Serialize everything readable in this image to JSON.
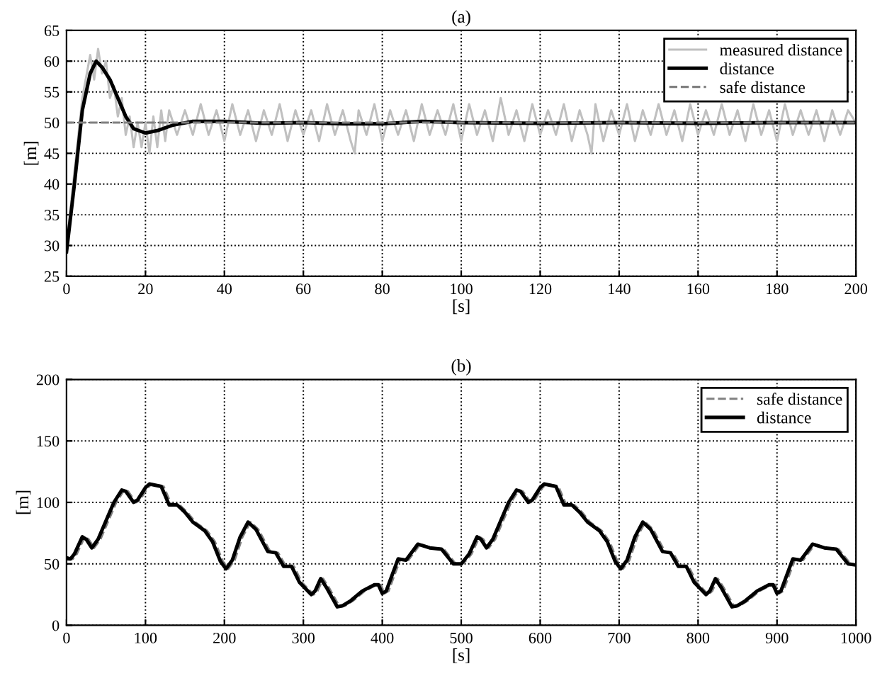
{
  "chart_data": [
    {
      "type": "line",
      "title": "(a)",
      "xlabel": "[s]",
      "ylabel": "[m]",
      "xlim": [
        0,
        200
      ],
      "ylim": [
        25,
        65
      ],
      "xticks": [
        0,
        20,
        40,
        60,
        80,
        100,
        120,
        140,
        160,
        180,
        200
      ],
      "yticks": [
        25,
        30,
        35,
        40,
        45,
        50,
        55,
        60,
        65
      ],
      "grid": true,
      "legend": "top right",
      "series": [
        {
          "name": "measured distance",
          "color": "#c0c0c0",
          "line_style": "solid",
          "x": [
            0,
            2,
            4,
            6,
            7,
            8,
            9,
            10,
            11,
            12,
            13,
            14,
            15,
            16,
            17,
            18,
            19,
            20,
            21,
            22,
            23,
            24,
            25,
            26,
            28,
            30,
            32,
            34,
            36,
            38,
            40,
            42,
            44,
            46,
            48,
            50,
            52,
            54,
            56,
            58,
            60,
            62,
            64,
            66,
            68,
            70,
            72,
            73,
            74,
            76,
            78,
            80,
            82,
            84,
            86,
            88,
            90,
            92,
            94,
            96,
            98,
            100,
            102,
            104,
            106,
            108,
            110,
            112,
            114,
            116,
            118,
            120,
            122,
            124,
            126,
            128,
            130,
            132,
            133,
            134,
            136,
            138,
            140,
            142,
            144,
            146,
            148,
            150,
            152,
            154,
            156,
            158,
            160,
            162,
            164,
            166,
            168,
            170,
            172,
            174,
            176,
            178,
            180,
            182,
            184,
            186,
            188,
            190,
            192,
            194,
            196,
            198,
            200
          ],
          "values": [
            30,
            42,
            54,
            61,
            57,
            62,
            58,
            60,
            54,
            56,
            51,
            54,
            48,
            51,
            46,
            50,
            46,
            50,
            45,
            51,
            46,
            52,
            47,
            52,
            48,
            52,
            48,
            53,
            48,
            52,
            47,
            53,
            48,
            52,
            47,
            52,
            48,
            53,
            47,
            52,
            48,
            52,
            47,
            53,
            48,
            52,
            47,
            45,
            52,
            48,
            53,
            47,
            52,
            48,
            52,
            47,
            53,
            48,
            52,
            48,
            53,
            47,
            53,
            48,
            52,
            47,
            54,
            48,
            52,
            47,
            53,
            48,
            52,
            48,
            53,
            47,
            52,
            48,
            45,
            53,
            47,
            52,
            48,
            53,
            47,
            52,
            48,
            53,
            48,
            52,
            47,
            53,
            48,
            52,
            48,
            53,
            48,
            52,
            47,
            53,
            48,
            52,
            47,
            53,
            48,
            52,
            48,
            52,
            47,
            52,
            48,
            52,
            50
          ]
        },
        {
          "name": "distance",
          "color": "#000000",
          "line_style": "solid",
          "x": [
            0,
            2,
            4,
            6,
            7.5,
            9,
            11,
            13,
            15,
            17,
            20,
            23,
            27,
            32,
            40,
            50,
            60,
            70,
            80,
            90,
            100,
            120,
            140,
            160,
            180,
            200
          ],
          "values": [
            29,
            40,
            52,
            58,
            60,
            59,
            57,
            54,
            51,
            49,
            48.3,
            48.7,
            49.6,
            50.2,
            50.2,
            49.9,
            50,
            49.8,
            49.8,
            50.2,
            50,
            49.9,
            50,
            49.9,
            50,
            50
          ]
        },
        {
          "name": "safe distance",
          "color": "#808080",
          "line_style": "dashed",
          "x": [
            0,
            200
          ],
          "values": [
            50,
            50
          ]
        }
      ]
    },
    {
      "type": "line",
      "title": "(b)",
      "xlabel": "[s]",
      "ylabel": "[m]",
      "xlim": [
        0,
        1000
      ],
      "ylim": [
        0,
        200
      ],
      "xticks": [
        0,
        100,
        200,
        300,
        400,
        500,
        600,
        700,
        800,
        900,
        1000
      ],
      "yticks": [
        0,
        50,
        100,
        150,
        200
      ],
      "grid": true,
      "legend": "top right",
      "series": [
        {
          "name": "safe distance",
          "color": "#808080",
          "line_style": "dashed",
          "x": [
            0,
            8,
            13,
            23,
            28,
            35,
            43,
            53,
            63,
            73,
            78,
            88,
            93,
            103,
            108,
            123,
            133,
            143,
            153,
            163,
            178,
            188,
            198,
            205,
            213,
            223,
            233,
            243,
            258,
            268,
            278,
            288,
            298,
            313,
            318,
            325,
            333,
            346,
            353,
            363,
            378,
            393,
            398,
            403,
            408,
            423,
            433,
            448,
            463,
            478,
            493,
            500,
            508,
            513,
            523,
            528,
            535,
            543,
            553,
            563,
            573,
            578,
            588,
            593,
            603,
            608,
            623,
            633,
            643,
            653,
            663,
            678,
            688,
            698,
            705,
            713,
            723,
            733,
            743,
            758,
            768,
            778,
            788,
            798,
            813,
            818,
            825,
            833,
            846,
            853,
            863,
            878,
            893,
            898,
            903,
            908,
            923,
            933,
            948,
            963,
            978,
            993,
            1000
          ],
          "values": [
            53,
            54,
            58,
            72,
            70,
            63,
            70,
            85,
            100,
            110,
            109,
            100,
            102,
            112,
            115,
            113,
            98,
            98,
            92,
            84,
            77,
            68,
            52,
            46,
            53,
            72,
            84,
            78,
            60,
            59,
            48,
            48,
            35,
            25,
            28,
            38,
            30,
            15,
            16,
            20,
            28,
            33,
            33,
            26,
            28,
            54,
            53,
            66,
            63,
            62,
            50,
            49,
            54,
            58,
            72,
            70,
            63,
            70,
            85,
            100,
            110,
            109,
            100,
            102,
            112,
            115,
            113,
            98,
            98,
            92,
            84,
            77,
            68,
            52,
            46,
            53,
            72,
            84,
            78,
            60,
            59,
            48,
            48,
            35,
            25,
            28,
            38,
            30,
            15,
            16,
            20,
            28,
            33,
            33,
            26,
            28,
            54,
            53,
            66,
            63,
            62,
            50,
            49
          ]
        },
        {
          "name": "distance",
          "color": "#000000",
          "line_style": "solid",
          "x": [
            0,
            5,
            10,
            20,
            25,
            32,
            40,
            50,
            60,
            70,
            75,
            85,
            90,
            100,
            105,
            120,
            130,
            140,
            150,
            160,
            175,
            185,
            195,
            202,
            210,
            220,
            230,
            240,
            255,
            265,
            275,
            285,
            295,
            310,
            315,
            322,
            330,
            343,
            350,
            360,
            375,
            390,
            395,
            400,
            405,
            420,
            430,
            445,
            460,
            475,
            490,
            500,
            505,
            510,
            520,
            525,
            532,
            540,
            550,
            560,
            570,
            575,
            585,
            590,
            600,
            605,
            620,
            630,
            640,
            650,
            660,
            675,
            685,
            695,
            702,
            710,
            720,
            730,
            740,
            755,
            765,
            775,
            785,
            795,
            810,
            815,
            822,
            830,
            843,
            850,
            860,
            875,
            890,
            895,
            900,
            905,
            920,
            930,
            945,
            960,
            975,
            990,
            1000
          ],
          "values": [
            55,
            54,
            58,
            72,
            70,
            63,
            70,
            85,
            100,
            110,
            109,
            100,
            102,
            112,
            115,
            113,
            98,
            98,
            92,
            84,
            77,
            68,
            52,
            46,
            53,
            72,
            84,
            78,
            60,
            59,
            48,
            48,
            35,
            25,
            28,
            38,
            30,
            15,
            16,
            20,
            28,
            33,
            33,
            26,
            28,
            54,
            53,
            66,
            63,
            62,
            50,
            50,
            54,
            58,
            72,
            70,
            63,
            70,
            85,
            100,
            110,
            109,
            100,
            102,
            112,
            115,
            113,
            98,
            98,
            92,
            84,
            77,
            68,
            52,
            46,
            53,
            72,
            84,
            78,
            60,
            59,
            48,
            48,
            35,
            25,
            28,
            38,
            30,
            15,
            16,
            20,
            28,
            33,
            33,
            26,
            28,
            54,
            53,
            66,
            63,
            62,
            50,
            49
          ]
        }
      ]
    }
  ]
}
